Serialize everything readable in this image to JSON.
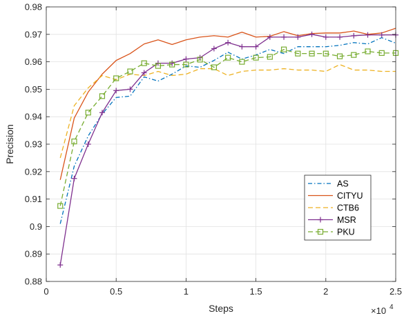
{
  "chart_data": {
    "type": "line",
    "title": "",
    "xlabel": "Steps",
    "ylabel": "Precision",
    "x_exponent_label": "×10",
    "x_exponent_power": "4",
    "xlim": [
      0,
      25000
    ],
    "ylim": [
      0.88,
      0.98
    ],
    "x_ticks": [
      0,
      5000,
      10000,
      15000,
      20000,
      25000
    ],
    "x_tick_labels": [
      "0",
      "0.5",
      "1",
      "1.5",
      "2",
      "2.5"
    ],
    "y_ticks": [
      0.88,
      0.89,
      0.9,
      0.91,
      0.92,
      0.93,
      0.94,
      0.95,
      0.96,
      0.97,
      0.98
    ],
    "y_tick_labels": [
      "0.88",
      "0.89",
      "0.9",
      "0.91",
      "0.92",
      "0.93",
      "0.94",
      "0.95",
      "0.96",
      "0.97",
      "0.98"
    ],
    "grid": true,
    "legend_position": "bottom-right",
    "x": [
      1000,
      2000,
      3000,
      4000,
      5000,
      6000,
      7000,
      8000,
      9000,
      10000,
      11000,
      12000,
      13000,
      14000,
      15000,
      16000,
      17000,
      18000,
      19000,
      20000,
      21000,
      22000,
      23000,
      24000,
      25000
    ],
    "series": [
      {
        "name": "AS",
        "color": "#0072bd",
        "dash": "6,3,1.5,3",
        "marker": "none",
        "values": [
          0.901,
          0.922,
          0.933,
          0.941,
          0.947,
          0.9475,
          0.9545,
          0.953,
          0.9555,
          0.9585,
          0.958,
          0.9605,
          0.9635,
          0.961,
          0.9625,
          0.9645,
          0.963,
          0.9655,
          0.9655,
          0.9655,
          0.966,
          0.967,
          0.9665,
          0.9688,
          0.9668
        ]
      },
      {
        "name": "CITYU",
        "color": "#d95319",
        "dash": "",
        "marker": "none",
        "values": [
          0.917,
          0.9395,
          0.949,
          0.9555,
          0.9605,
          0.963,
          0.9665,
          0.968,
          0.9663,
          0.968,
          0.969,
          0.9695,
          0.969,
          0.9708,
          0.969,
          0.9693,
          0.971,
          0.9695,
          0.9703,
          0.9705,
          0.9705,
          0.9712,
          0.97,
          0.9705,
          0.9722
        ]
      },
      {
        "name": "CTB6",
        "color": "#edb120",
        "dash": "7,4",
        "marker": "none",
        "values": [
          0.925,
          0.944,
          0.9505,
          0.955,
          0.9535,
          0.9555,
          0.955,
          0.9565,
          0.955,
          0.9555,
          0.9575,
          0.9575,
          0.955,
          0.9565,
          0.957,
          0.957,
          0.9575,
          0.957,
          0.957,
          0.9565,
          0.959,
          0.957,
          0.957,
          0.9565,
          0.9565
        ]
      },
      {
        "name": "MSR",
        "color": "#7e2f8e",
        "dash": "",
        "marker": "plus",
        "values": [
          0.886,
          0.9175,
          0.93,
          0.9415,
          0.9495,
          0.95,
          0.956,
          0.9595,
          0.9595,
          0.961,
          0.9615,
          0.9648,
          0.967,
          0.9655,
          0.9655,
          0.969,
          0.969,
          0.969,
          0.97,
          0.969,
          0.969,
          0.9695,
          0.9698,
          0.9698,
          0.9698
        ]
      },
      {
        "name": "PKU",
        "color": "#77ac30",
        "dash": "7,4",
        "marker": "square",
        "values": [
          0.9075,
          0.931,
          0.9415,
          0.9475,
          0.954,
          0.9565,
          0.9595,
          0.9585,
          0.959,
          0.959,
          0.9608,
          0.958,
          0.9615,
          0.96,
          0.9615,
          0.9618,
          0.9645,
          0.963,
          0.963,
          0.963,
          0.962,
          0.9625,
          0.9638,
          0.9632,
          0.9632
        ]
      }
    ]
  }
}
